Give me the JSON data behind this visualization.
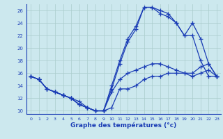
{
  "title": "Graphe des températures (°c)",
  "bg_color": "#cce8ee",
  "grid_color": "#aacccc",
  "line_color": "#1a3cb5",
  "xlim": [
    -0.5,
    23.5
  ],
  "ylim": [
    9.5,
    27
  ],
  "xticks": [
    0,
    1,
    2,
    3,
    4,
    5,
    6,
    7,
    8,
    9,
    10,
    11,
    12,
    13,
    14,
    15,
    16,
    17,
    18,
    19,
    20,
    21,
    22,
    23
  ],
  "yticks": [
    10,
    12,
    14,
    16,
    18,
    20,
    22,
    24,
    26
  ],
  "line1_x": [
    0,
    1,
    2,
    3,
    4,
    5,
    6,
    7,
    8,
    9,
    10,
    11,
    12,
    13,
    14,
    15,
    16,
    17,
    18,
    19,
    20,
    21,
    22,
    23
  ],
  "line1_y": [
    15.5,
    15.0,
    13.5,
    13.0,
    12.5,
    12.0,
    11.0,
    10.5,
    10.0,
    10.0,
    10.5,
    13.5,
    13.5,
    14.0,
    15.0,
    15.5,
    15.5,
    16.0,
    16.0,
    16.0,
    16.0,
    17.0,
    17.5,
    15.5
  ],
  "line2_x": [
    0,
    1,
    2,
    3,
    4,
    5,
    6,
    7,
    8,
    9,
    10,
    11,
    12,
    13,
    14,
    15,
    16,
    17,
    18,
    19,
    20,
    21,
    22,
    23
  ],
  "line2_y": [
    15.5,
    15.0,
    13.5,
    13.0,
    12.5,
    12.0,
    11.0,
    10.5,
    10.0,
    10.0,
    14.0,
    18.0,
    21.5,
    23.5,
    26.5,
    26.5,
    26.0,
    25.5,
    24.0,
    22.0,
    24.0,
    21.5,
    17.5,
    15.5
  ],
  "line3_x": [
    0,
    1,
    2,
    3,
    4,
    5,
    6,
    7,
    8,
    9,
    10,
    11,
    12,
    13,
    14,
    15,
    16,
    17,
    18,
    19,
    20,
    21,
    22,
    23
  ],
  "line3_y": [
    15.5,
    15.0,
    13.5,
    13.0,
    12.5,
    12.0,
    11.0,
    10.5,
    10.0,
    10.0,
    13.5,
    17.5,
    21.0,
    23.0,
    26.5,
    26.5,
    25.5,
    25.0,
    24.0,
    22.0,
    22.0,
    18.0,
    15.5,
    15.5
  ],
  "line4_x": [
    0,
    1,
    2,
    3,
    4,
    5,
    6,
    7,
    8,
    9,
    10,
    11,
    12,
    13,
    14,
    15,
    16,
    17,
    18,
    19,
    20,
    21,
    22,
    23
  ],
  "line4_y": [
    15.5,
    15.0,
    13.5,
    13.0,
    12.5,
    12.0,
    11.5,
    10.5,
    10.0,
    10.0,
    13.0,
    15.0,
    16.0,
    16.5,
    17.0,
    17.5,
    17.5,
    17.0,
    16.5,
    16.0,
    15.5,
    16.0,
    16.5,
    15.5
  ]
}
